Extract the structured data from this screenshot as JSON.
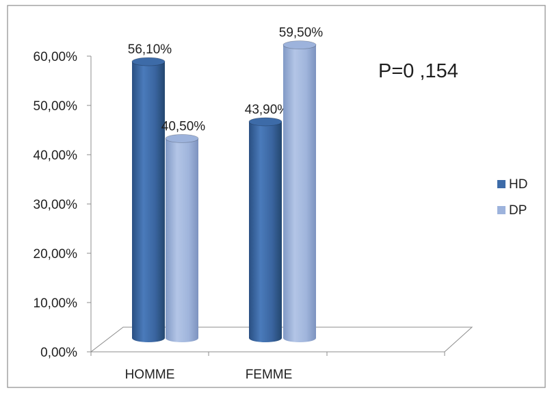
{
  "chart_data": {
    "type": "bar",
    "categories": [
      "HOMME",
      "FEMME"
    ],
    "series": [
      {
        "name": "HD",
        "values": [
          56.1,
          43.9
        ],
        "labels": [
          "56,10%",
          "43,90%"
        ],
        "color": "#3D6BA8"
      },
      {
        "name": "DP",
        "values": [
          40.5,
          59.5
        ],
        "labels": [
          "40,50%",
          "59,50%"
        ],
        "color": "#9DB3DC"
      }
    ],
    "y_ticks": [
      "0,00%",
      "10,00%",
      "20,00%",
      "30,00%",
      "40,00%",
      "50,00%",
      "60,00%"
    ],
    "ylim": [
      0,
      60
    ],
    "annotation": "P=0 ,154",
    "legend_position": "right",
    "grid": false,
    "style": "3d-cylinder"
  }
}
